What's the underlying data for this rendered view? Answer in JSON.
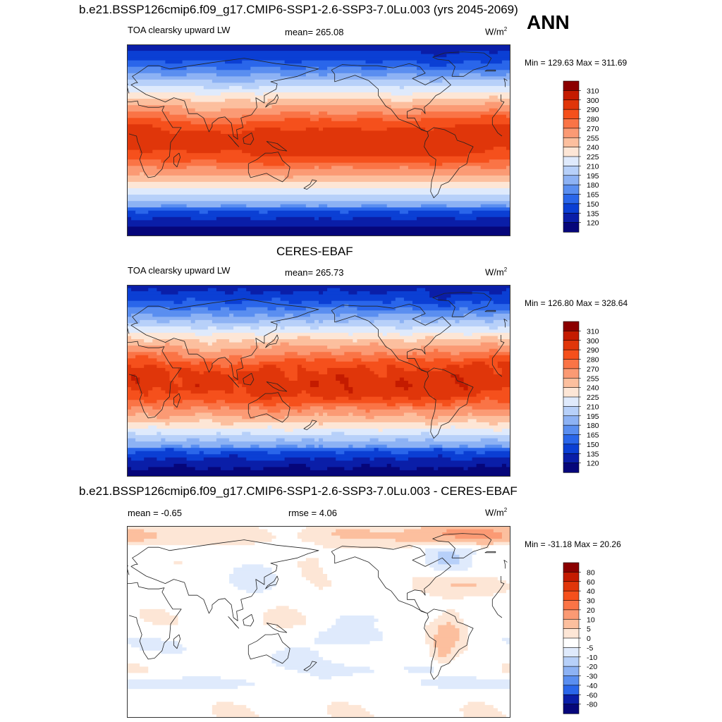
{
  "figure": {
    "season": "ANN"
  },
  "chart_data": [
    {
      "type": "heatmap",
      "title": "b.e21.BSSP126cmip6.f09_g17.CMIP6-SSP1-2.6-SSP3-7.0Lu.003 (yrs 2045-2069)",
      "left_label": "TOA clearsky upward LW",
      "center_label": "mean= 265.08",
      "right_label": "W/m",
      "units_exp": "2",
      "min_label": "Min = 129.63",
      "max_label": "Max = 311.69",
      "mean": 265.08,
      "min": 129.63,
      "max": 311.69,
      "colorbar": {
        "levels": [
          "310",
          "300",
          "290",
          "280",
          "270",
          "255",
          "240",
          "225",
          "210",
          "195",
          "180",
          "165",
          "150",
          "135",
          "120"
        ],
        "colors": [
          "#8b0000",
          "#c41b00",
          "#e0360a",
          "#f5501c",
          "#fa7446",
          "#fb9a74",
          "#fcbf9e",
          "#fde6d6",
          "#dfeafc",
          "#b7d0f9",
          "#8db2f4",
          "#5a8ef0",
          "#2a66ea",
          "#0b3fd4",
          "#0a1ea8",
          "#06067a"
        ]
      }
    },
    {
      "type": "heatmap",
      "title": "CERES-EBAF",
      "left_label": "TOA clearsky upward LW",
      "center_label": "mean= 265.73",
      "right_label": "W/m",
      "units_exp": "2",
      "min_label": "Min = 126.80",
      "max_label": "Max = 328.64",
      "mean": 265.73,
      "min": 126.8,
      "max": 328.64,
      "colorbar": {
        "levels": [
          "310",
          "300",
          "290",
          "280",
          "270",
          "255",
          "240",
          "225",
          "210",
          "195",
          "180",
          "165",
          "150",
          "135",
          "120"
        ],
        "colors": [
          "#8b0000",
          "#c41b00",
          "#e0360a",
          "#f5501c",
          "#fa7446",
          "#fb9a74",
          "#fcbf9e",
          "#fde6d6",
          "#dfeafc",
          "#b7d0f9",
          "#8db2f4",
          "#5a8ef0",
          "#2a66ea",
          "#0b3fd4",
          "#0a1ea8",
          "#06067a"
        ]
      }
    },
    {
      "type": "heatmap",
      "title": "b.e21.BSSP126cmip6.f09_g17.CMIP6-SSP1-2.6-SSP3-7.0Lu.003 - CERES-EBAF",
      "left_label": "mean =  -0.65",
      "center_label": "rmse =   4.06",
      "right_label": "W/m",
      "units_exp": "2",
      "min_label": "Min = -31.18",
      "max_label": "Max =  20.26",
      "mean": -0.65,
      "rmse": 4.06,
      "min": -31.18,
      "max": 20.26,
      "colorbar": {
        "levels": [
          "80",
          "60",
          "40",
          "30",
          "20",
          "10",
          "5",
          "0",
          "-5",
          "-10",
          "-20",
          "-30",
          "-40",
          "-60",
          "-80"
        ],
        "colors": [
          "#8b0000",
          "#c41b00",
          "#e0360a",
          "#f5501c",
          "#fa7446",
          "#fb9a74",
          "#fcbf9e",
          "#fde6d6",
          "#ffffff",
          "#dfeafc",
          "#b7d0f9",
          "#8db2f4",
          "#5a8ef0",
          "#2a66ea",
          "#0a1ea8",
          "#06067a"
        ]
      }
    }
  ]
}
